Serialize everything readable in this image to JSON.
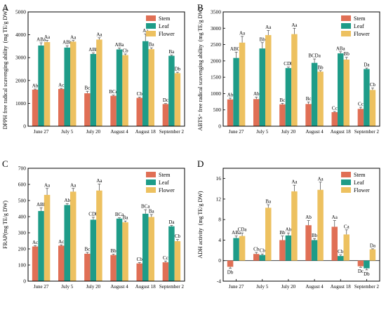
{
  "colors": {
    "Stem": "#e06f55",
    "Leaf": "#1e9c88",
    "Flower": "#edc160"
  },
  "legend_entries": [
    "Stem",
    "Leaf",
    "Flower"
  ],
  "chart_data": [
    {
      "panel": "A",
      "type": "bar",
      "ylabel": "DPPH free radical scavenging ability  (mg TE/g DW)",
      "ylim": [
        0,
        5000
      ],
      "yticks": [
        0,
        1000,
        2000,
        3000,
        4000,
        5000
      ],
      "categories": [
        "June 27",
        "July 5",
        "July 20",
        "August 4",
        "August 18",
        "September 2"
      ],
      "legend": "top-right",
      "series": [
        {
          "name": "Stem",
          "values": [
            1600,
            1630,
            1440,
            1330,
            1240,
            970
          ],
          "errors": [
            25,
            25,
            90,
            30,
            30,
            20
          ],
          "labels": [
            "Ab",
            "Ac",
            "Bc",
            "BCc",
            "Cb",
            "Dc"
          ]
        },
        {
          "name": "Leaf",
          "values": [
            3530,
            3440,
            3160,
            3360,
            3720,
            3080
          ],
          "errors": [
            120,
            80,
            50,
            60,
            320,
            30
          ],
          "labels": [
            "ABa",
            "ABb",
            "ABb",
            "ABa",
            "Aa",
            "Ba"
          ]
        },
        {
          "name": "Flower",
          "values": [
            3680,
            3700,
            3790,
            3110,
            3370,
            2320
          ],
          "errors": [
            80,
            50,
            80,
            50,
            60,
            40
          ],
          "labels": [
            "Aa",
            "Aa",
            "Aa",
            "Cb",
            "Ba",
            "Db"
          ]
        }
      ]
    },
    {
      "panel": "B",
      "type": "bar",
      "ylabel": "ABTS⁺ free radical scavenging ability  (mg TE/g DW)",
      "ylim": [
        0,
        3500
      ],
      "yticks": [
        0,
        500,
        1000,
        1500,
        2000,
        2500,
        3000,
        3500
      ],
      "categories": [
        "June 27",
        "July 5",
        "July 20",
        "August 4",
        "August 18",
        "September 2"
      ],
      "legend": "top-right",
      "series": [
        {
          "name": "Stem",
          "values": [
            820,
            830,
            670,
            680,
            430,
            530
          ],
          "errors": [
            40,
            60,
            30,
            60,
            20,
            50
          ],
          "labels": [
            "Ab",
            "Ab",
            "Bc",
            "Bc",
            "Cc",
            "Cc"
          ]
        },
        {
          "name": "Leaf",
          "values": [
            2090,
            2380,
            1780,
            1940,
            2230,
            1750
          ],
          "errors": [
            180,
            180,
            30,
            120,
            50,
            30
          ],
          "labels": [
            "ABCa",
            "Bb",
            "CDb",
            "BCDa",
            "ABa",
            "Da"
          ]
        },
        {
          "name": "Flower",
          "values": [
            2560,
            2790,
            2820,
            1670,
            2040,
            1110
          ],
          "errors": [
            190,
            140,
            180,
            30,
            70,
            60
          ],
          "labels": [
            "Aa",
            "Aa",
            "Aa",
            "Bb",
            "Bb",
            "Cb"
          ]
        }
      ]
    },
    {
      "panel": "C",
      "type": "bar",
      "ylabel": "FRAP(mg TE/g DW)",
      "ylim": [
        0,
        700
      ],
      "yticks": [
        0,
        100,
        200,
        300,
        400,
        500,
        600,
        700
      ],
      "categories": [
        "June 27",
        "July 5",
        "July 20",
        "August 4",
        "August 18",
        "September 2"
      ],
      "legend": "top-right",
      "series": [
        {
          "name": "Stem",
          "values": [
            215,
            220,
            170,
            162,
            110,
            117
          ],
          "errors": [
            5,
            5,
            8,
            5,
            5,
            8
          ],
          "labels": [
            "Ac",
            "Ac",
            "Bc",
            "Bb",
            "Cb",
            "Cc"
          ]
        },
        {
          "name": "Leaf",
          "values": [
            435,
            472,
            381,
            388,
            418,
            340
          ],
          "errors": [
            20,
            8,
            15,
            5,
            25,
            5
          ],
          "labels": [
            "ABb",
            "Ab",
            "CDb",
            "BCa",
            "BCa",
            "Da"
          ]
        },
        {
          "name": "Flower",
          "values": [
            535,
            555,
            562,
            365,
            398,
            248
          ],
          "errors": [
            40,
            20,
            40,
            8,
            15,
            10
          ],
          "labels": [
            "Aa",
            "Aa",
            "Aa",
            "Ba",
            "Ba",
            "Cb"
          ]
        }
      ]
    },
    {
      "panel": "D",
      "type": "bar",
      "ylabel": "ADH activity  (mg TE/g DW)",
      "ylim": [
        -4,
        18
      ],
      "yticks": [
        -4,
        0,
        4,
        8,
        12,
        16
      ],
      "categories": [
        "June 27",
        "July 5",
        "July 20",
        "August 4",
        "August 18",
        "September 2"
      ],
      "legend": "top-right",
      "series": [
        {
          "name": "Stem",
          "values": [
            -1.2,
            1.3,
            4.0,
            6.9,
            6.6,
            -1.1
          ],
          "errors": [
            0.3,
            0.3,
            0.8,
            0.9,
            1.2,
            0.2
          ],
          "labels": [
            "Db",
            "Cb",
            "Bb",
            "Ab",
            "Aa",
            "Dc"
          ]
        },
        {
          "name": "Leaf",
          "values": [
            4.4,
            1.1,
            4.9,
            4.0,
            0.9,
            -1.5
          ],
          "errors": [
            0.4,
            0.2,
            0.5,
            0.3,
            0.2,
            0.3
          ],
          "labels": [
            "ABa",
            "Cb",
            "Ab",
            "Bb",
            "Cb",
            "Db"
          ]
        },
        {
          "name": "Flower",
          "values": [
            4.8,
            10.3,
            13.5,
            13.8,
            5.1,
            2.2
          ],
          "errors": [
            0.6,
            0.6,
            1.2,
            1.5,
            0.9,
            0.1
          ],
          "labels": [
            "CDa",
            "Ba",
            "Aa",
            "Aa",
            "Ca",
            "Da"
          ]
        }
      ]
    }
  ]
}
